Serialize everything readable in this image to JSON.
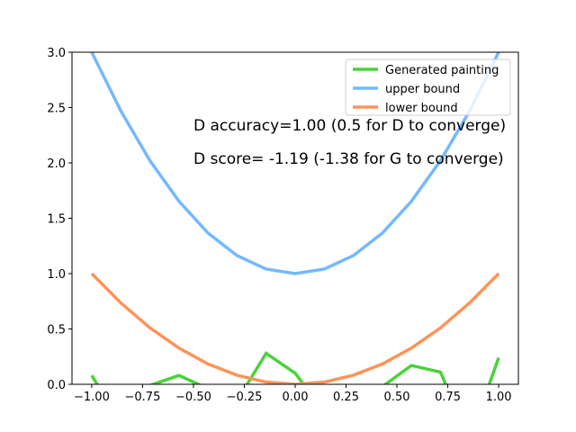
{
  "chart_data": {
    "type": "line",
    "annotations": [
      "D accuracy=1.00 (0.5 for D to converge)",
      "D score= -1.19 (-1.38 for G to converge)"
    ],
    "x": [
      -1,
      -0.857,
      -0.714,
      -0.571,
      -0.429,
      -0.286,
      -0.143,
      0,
      0.143,
      0.286,
      0.429,
      0.571,
      0.714,
      0.857,
      1
    ],
    "series": [
      {
        "name": "Generated painting",
        "color": "#4ad23a",
        "values": [
          0.08,
          -0.35,
          -0.01,
          0.08,
          -0.04,
          -0.15,
          0.28,
          0.1,
          -0.25,
          -0.3,
          -0.02,
          0.17,
          0.11,
          -0.5,
          0.24
        ]
      },
      {
        "name": "upper bound",
        "color": "#74b9ff",
        "values": [
          3,
          2.469,
          2.02,
          1.653,
          1.367,
          1.163,
          1.041,
          1,
          1.041,
          1.163,
          1.367,
          1.653,
          2.02,
          2.469,
          3
        ]
      },
      {
        "name": "lower bound",
        "color": "#ff9359",
        "values": [
          1,
          0.735,
          0.51,
          0.327,
          0.184,
          0.082,
          0.02,
          0,
          0.02,
          0.082,
          0.184,
          0.327,
          0.51,
          0.735,
          1
        ]
      }
    ],
    "xlim": [
      -1.097,
      1.097
    ],
    "ylim": [
      0,
      3
    ],
    "xticks": [
      {
        "value": -1,
        "label": "−1.00"
      },
      {
        "value": -0.75,
        "label": "−0.75"
      },
      {
        "value": -0.5,
        "label": "−0.50"
      },
      {
        "value": -0.25,
        "label": "−0.25"
      },
      {
        "value": 0,
        "label": "0.00"
      },
      {
        "value": 0.25,
        "label": "0.25"
      },
      {
        "value": 0.5,
        "label": "0.50"
      },
      {
        "value": 0.75,
        "label": "0.75"
      },
      {
        "value": 1,
        "label": "1.00"
      }
    ],
    "yticks": [
      {
        "value": 0,
        "label": "0.0"
      },
      {
        "value": 0.5,
        "label": "0.5"
      },
      {
        "value": 1,
        "label": "1.0"
      },
      {
        "value": 1.5,
        "label": "1.5"
      },
      {
        "value": 2,
        "label": "2.0"
      },
      {
        "value": 2.5,
        "label": "2.5"
      },
      {
        "value": 3,
        "label": "3.0"
      }
    ],
    "legend": "upper right"
  }
}
